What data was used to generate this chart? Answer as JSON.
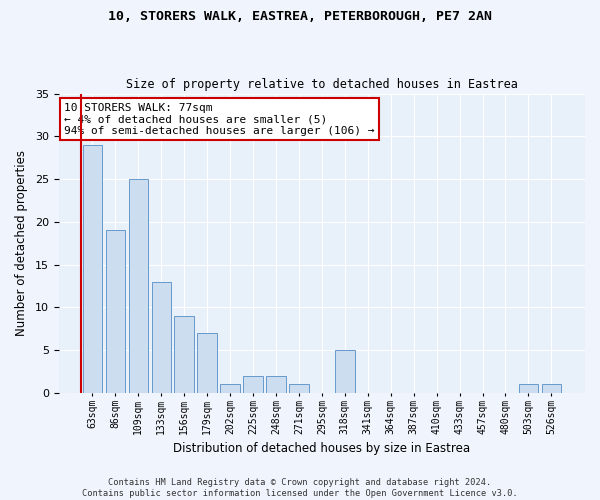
{
  "title_line1": "10, STORERS WALK, EASTREA, PETERBOROUGH, PE7 2AN",
  "title_line2": "Size of property relative to detached houses in Eastrea",
  "xlabel": "Distribution of detached houses by size in Eastrea",
  "ylabel": "Number of detached properties",
  "categories": [
    "63sqm",
    "86sqm",
    "109sqm",
    "133sqm",
    "156sqm",
    "179sqm",
    "202sqm",
    "225sqm",
    "248sqm",
    "271sqm",
    "295sqm",
    "318sqm",
    "341sqm",
    "364sqm",
    "387sqm",
    "410sqm",
    "433sqm",
    "457sqm",
    "480sqm",
    "503sqm",
    "526sqm"
  ],
  "values": [
    29,
    19,
    25,
    13,
    9,
    7,
    1,
    2,
    2,
    1,
    0,
    5,
    0,
    0,
    0,
    0,
    0,
    0,
    0,
    1,
    1
  ],
  "bar_color": "#ccddf0",
  "bar_edgecolor": "#6699cc",
  "subject_line_color": "#cc0000",
  "annotation_text": "10 STORERS WALK: 77sqm\n← 4% of detached houses are smaller (5)\n94% of semi-detached houses are larger (106) →",
  "annotation_box_facecolor": "#ffffff",
  "annotation_box_edgecolor": "#cc0000",
  "ylim": [
    0,
    35
  ],
  "yticks": [
    0,
    5,
    10,
    15,
    20,
    25,
    30,
    35
  ],
  "footer_line1": "Contains HM Land Registry data © Crown copyright and database right 2024.",
  "footer_line2": "Contains public sector information licensed under the Open Government Licence v3.0.",
  "fig_facecolor": "#f0f4fc",
  "plot_bg_color": "#e8f0fa"
}
